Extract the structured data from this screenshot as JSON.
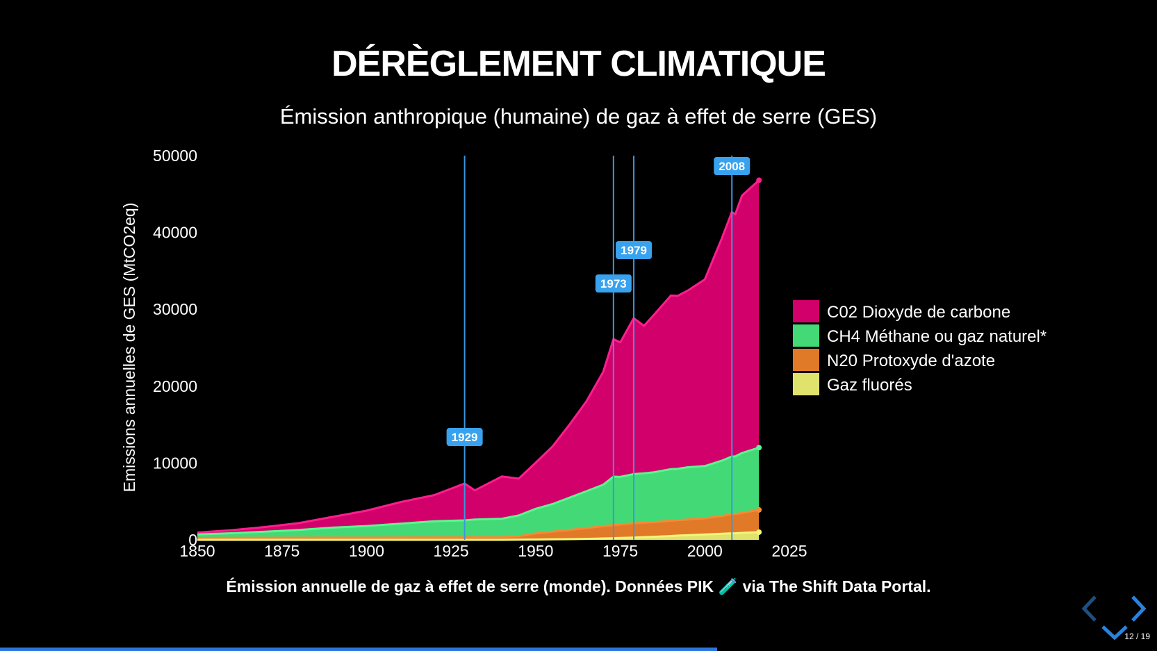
{
  "slide": {
    "title": "DÉRÈGLEMENT CLIMATIQUE",
    "subtitle": "Émission anthropique (humaine) de gaz à effet de serre (GES)",
    "caption": "Émission annuelle de gaz à effet de serre (monde). Données PIK 🧪 via The Shift Data Portal."
  },
  "navigation": {
    "page_current": "12",
    "page_total": "19",
    "progress": 0.62,
    "prev_icon": "chevron-left-icon",
    "next_icon": "chevron-right-icon",
    "down_icon": "chevron-down-icon",
    "color": "#2a82da"
  },
  "chart_data": {
    "type": "area",
    "stacked": true,
    "x": [
      1850,
      1860,
      1870,
      1880,
      1890,
      1900,
      1910,
      1920,
      1929,
      1932,
      1940,
      1945,
      1950,
      1955,
      1960,
      1965,
      1970,
      1973,
      1975,
      1979,
      1982,
      1985,
      1990,
      1992,
      1995,
      2000,
      2005,
      2008,
      2009,
      2011,
      2016
    ],
    "series": [
      {
        "name": "C02 Dioxyde de carbone",
        "color": "#d1006a",
        "line_color": "#ff1e8e",
        "values": [
          250,
          400,
          600,
          900,
          1400,
          2000,
          2800,
          3400,
          4800,
          3800,
          5500,
          4800,
          6000,
          7500,
          9500,
          11700,
          14700,
          17900,
          17500,
          20300,
          19200,
          20500,
          22600,
          22500,
          23000,
          24300,
          28900,
          31800,
          31500,
          33500,
          34800
        ]
      },
      {
        "name": "CH4 Méthane ou gaz naturel*",
        "color": "#44d977",
        "line_color": "#5cf58e",
        "values": [
          450,
          600,
          800,
          1000,
          1300,
          1500,
          1800,
          2100,
          2200,
          2300,
          2400,
          2700,
          3200,
          3600,
          4200,
          4800,
          5400,
          6300,
          6200,
          6400,
          6400,
          6500,
          6700,
          6700,
          6800,
          6800,
          7200,
          7500,
          7500,
          7800,
          8100
        ]
      },
      {
        "name": "N20 Protoxyde d'azote",
        "color": "#e07a28",
        "line_color": "#f58a35",
        "values": [
          250,
          260,
          270,
          280,
          290,
          300,
          310,
          320,
          330,
          340,
          350,
          450,
          800,
          1000,
          1200,
          1400,
          1600,
          1700,
          1750,
          1850,
          1900,
          1900,
          2000,
          2000,
          2050,
          2100,
          2300,
          2500,
          2500,
          2600,
          2900
        ]
      },
      {
        "name": "Gaz fluorés",
        "color": "#e0e36b",
        "line_color": "#f4f57a",
        "values": [
          0,
          0,
          0,
          0,
          0,
          0,
          0,
          0,
          0,
          0,
          0,
          20,
          40,
          60,
          90,
          130,
          180,
          220,
          250,
          300,
          350,
          400,
          500,
          550,
          600,
          700,
          800,
          850,
          860,
          900,
          1000
        ]
      }
    ],
    "markers": [
      1929,
      1973,
      1979,
      2008
    ],
    "ylabel": "Emissions annuelles de GES (MtCO2eq)",
    "xlim": [
      1850,
      2025
    ],
    "ylim": [
      0,
      50000
    ],
    "xticks": [
      1850,
      1875,
      1900,
      1925,
      1950,
      1975,
      2000,
      2025
    ],
    "yticks": [
      0,
      10000,
      20000,
      30000,
      40000,
      50000
    ],
    "legend": "right",
    "grid": false,
    "marker_color": "#3b97e0",
    "badge_color": "#38a2ee"
  }
}
